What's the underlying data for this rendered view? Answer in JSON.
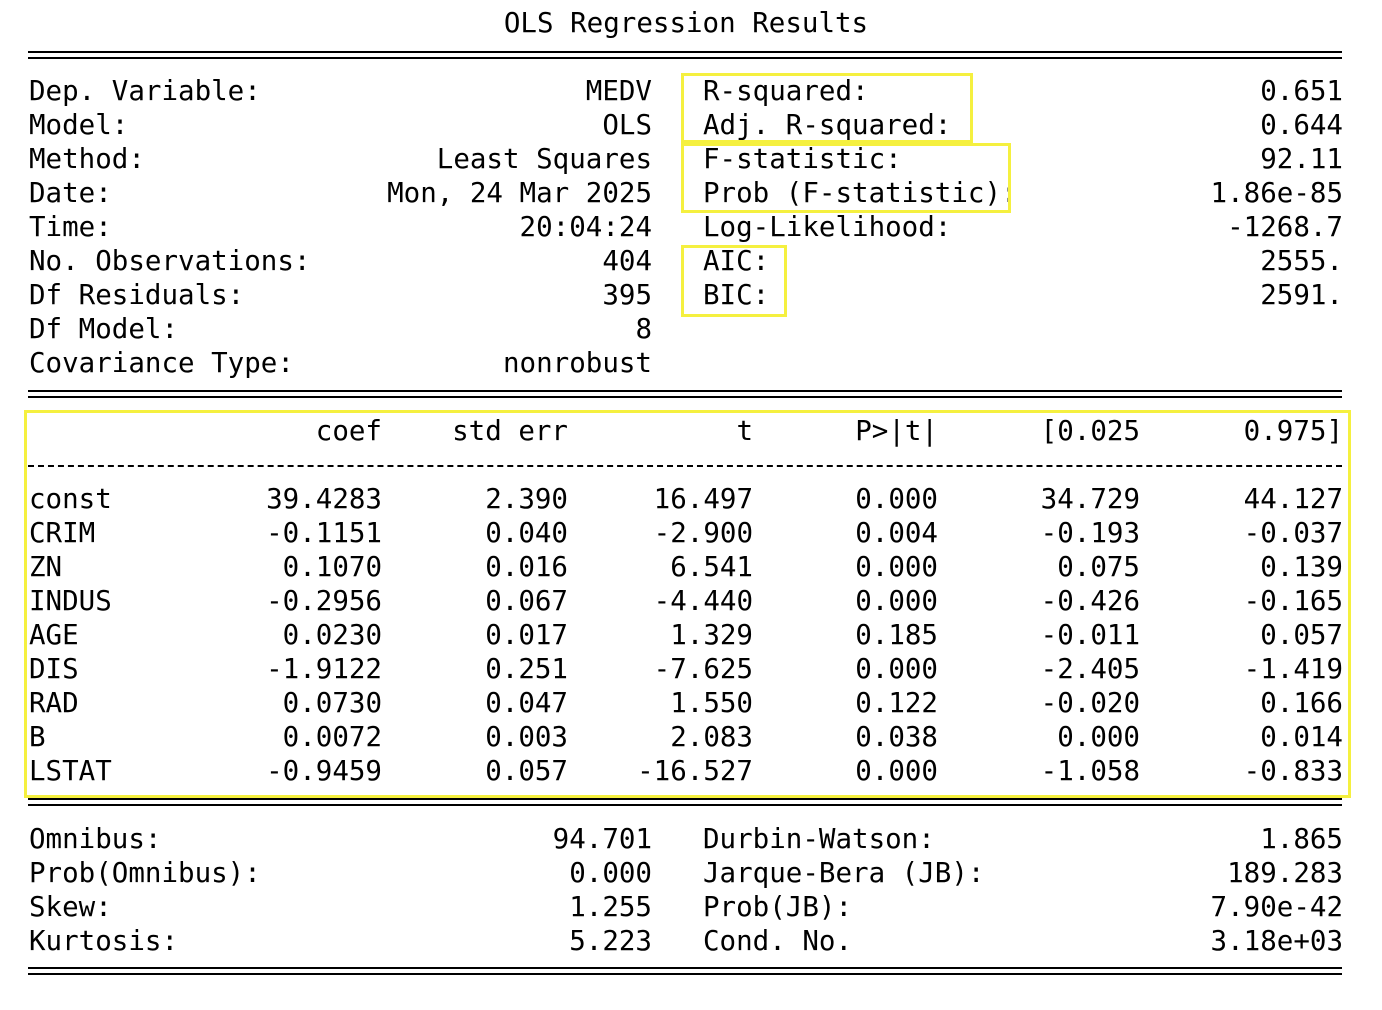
{
  "title": "OLS Regression Results",
  "highlight_color": "#f5f03f",
  "top_left": [
    {
      "label": "Dep. Variable:",
      "value": "MEDV"
    },
    {
      "label": "Model:",
      "value": "OLS"
    },
    {
      "label": "Method:",
      "value": "Least Squares"
    },
    {
      "label": "Date:",
      "value": "Mon, 24 Mar 2025"
    },
    {
      "label": "Time:",
      "value": "20:04:24"
    },
    {
      "label": "No. Observations:",
      "value": "404"
    },
    {
      "label": "Df Residuals:",
      "value": "395"
    },
    {
      "label": "Df Model:",
      "value": "8"
    },
    {
      "label": "Covariance Type:",
      "value": "nonrobust"
    }
  ],
  "top_right": [
    {
      "label": "R-squared:",
      "value": "0.651"
    },
    {
      "label": "Adj. R-squared:",
      "value": "0.644"
    },
    {
      "label": "F-statistic:",
      "value": "92.11"
    },
    {
      "label": "Prob (F-statistic):",
      "value": "1.86e-85"
    },
    {
      "label": "Log-Likelihood:",
      "value": "-1268.7"
    },
    {
      "label": "AIC:",
      "value": "2555."
    },
    {
      "label": "BIC:",
      "value": "2591."
    }
  ],
  "coef_table": {
    "headers": [
      "coef",
      "std err",
      "t",
      "P>|t|",
      "[0.025",
      "0.975]"
    ],
    "rows": [
      {
        "name": "const",
        "values": [
          "39.4283",
          "2.390",
          "16.497",
          "0.000",
          "34.729",
          "44.127"
        ]
      },
      {
        "name": "CRIM",
        "values": [
          "-0.1151",
          "0.040",
          "-2.900",
          "0.004",
          "-0.193",
          "-0.037"
        ]
      },
      {
        "name": "ZN",
        "values": [
          "0.1070",
          "0.016",
          "6.541",
          "0.000",
          "0.075",
          "0.139"
        ]
      },
      {
        "name": "INDUS",
        "values": [
          "-0.2956",
          "0.067",
          "-4.440",
          "0.000",
          "-0.426",
          "-0.165"
        ]
      },
      {
        "name": "AGE",
        "values": [
          "0.0230",
          "0.017",
          "1.329",
          "0.185",
          "-0.011",
          "0.057"
        ]
      },
      {
        "name": "DIS",
        "values": [
          "-1.9122",
          "0.251",
          "-7.625",
          "0.000",
          "-2.405",
          "-1.419"
        ]
      },
      {
        "name": "RAD",
        "values": [
          "0.0730",
          "0.047",
          "1.550",
          "0.122",
          "-0.020",
          "0.166"
        ]
      },
      {
        "name": "B",
        "values": [
          "0.0072",
          "0.003",
          "2.083",
          "0.038",
          "0.000",
          "0.014"
        ]
      },
      {
        "name": "LSTAT",
        "values": [
          "-0.9459",
          "0.057",
          "-16.527",
          "0.000",
          "-1.058",
          "-0.833"
        ]
      }
    ]
  },
  "bottom_left": [
    {
      "label": "Omnibus:",
      "value": "94.701"
    },
    {
      "label": "Prob(Omnibus):",
      "value": "0.000"
    },
    {
      "label": "Skew:",
      "value": "1.255"
    },
    {
      "label": "Kurtosis:",
      "value": "5.223"
    }
  ],
  "bottom_right": [
    {
      "label": "Durbin-Watson:",
      "value": "1.865"
    },
    {
      "label": "Jarque-Bera (JB):",
      "value": "189.283"
    },
    {
      "label": "Prob(JB):",
      "value": "7.90e-42"
    },
    {
      "label": "Cond. No.",
      "value": "3.18e+03"
    }
  ]
}
